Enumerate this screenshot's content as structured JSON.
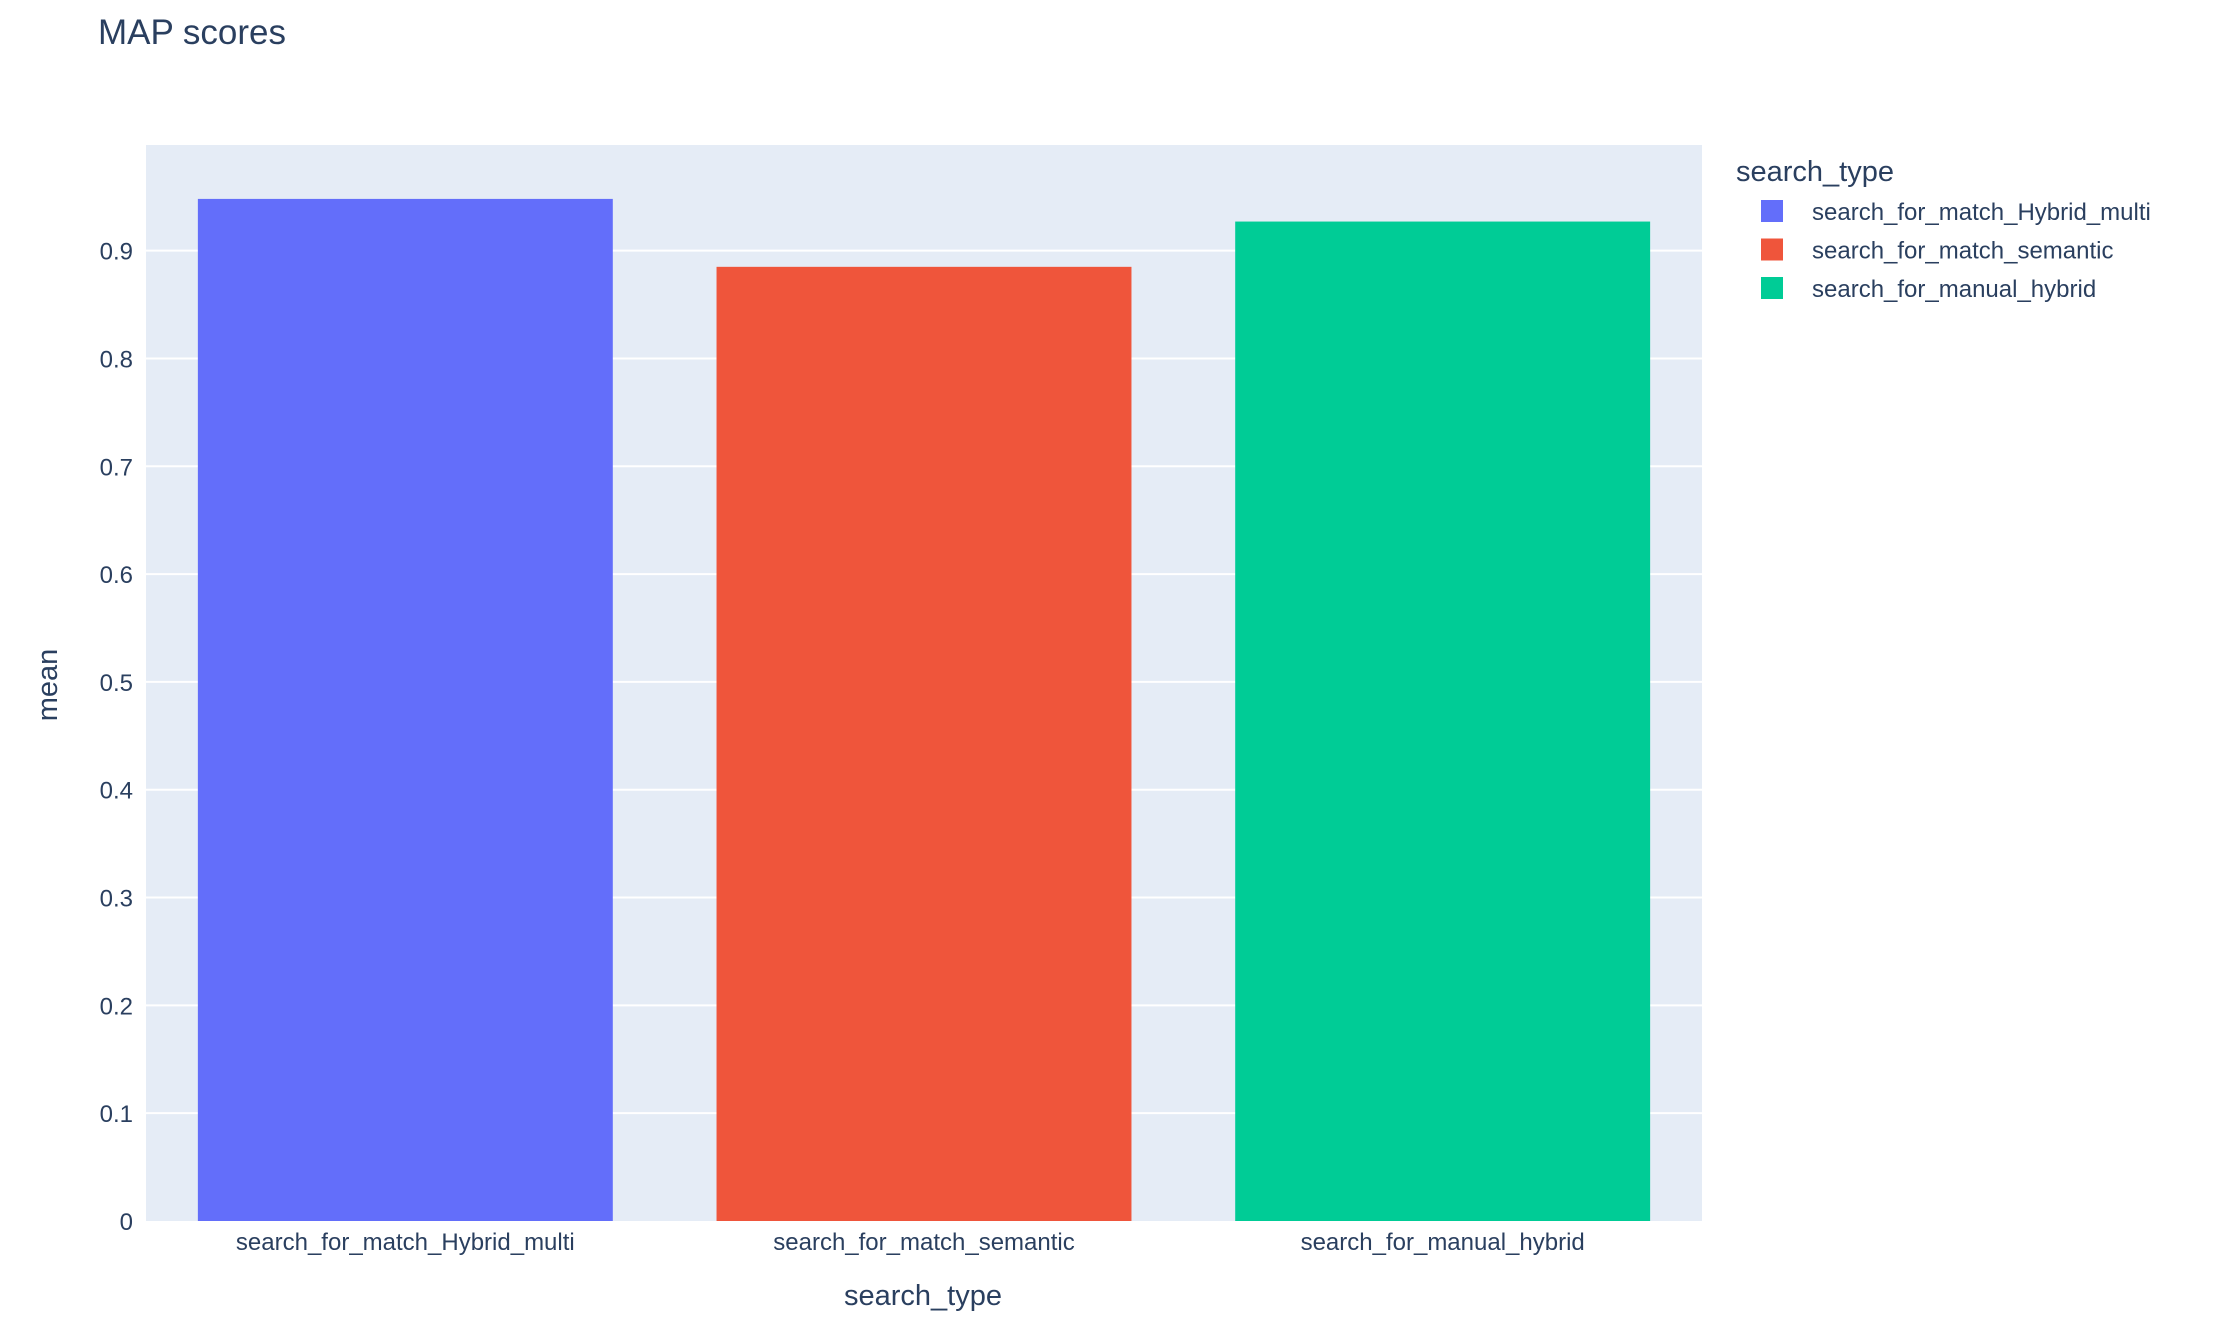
{
  "chart_data": {
    "type": "bar",
    "title": "MAP scores",
    "xlabel": "search_type",
    "ylabel": "mean",
    "categories": [
      "search_for_match_Hybrid_multi",
      "search_for_match_semantic",
      "search_for_manual_hybrid"
    ],
    "values": [
      0.948,
      0.885,
      0.927
    ],
    "colors": [
      "#636efa",
      "#ef553b",
      "#00cc96"
    ],
    "ylim": [
      0,
      0.998
    ],
    "yticks": [
      0,
      0.1,
      0.2,
      0.3,
      0.4,
      0.5,
      0.6,
      0.7,
      0.8,
      0.9
    ],
    "ytick_labels": [
      "0",
      "0.1",
      "0.2",
      "0.3",
      "0.4",
      "0.5",
      "0.6",
      "0.7",
      "0.8",
      "0.9"
    ],
    "grid": true,
    "legend": {
      "title": "search_type",
      "placement": "top-right",
      "entries": [
        "search_for_match_Hybrid_multi",
        "search_for_match_semantic",
        "search_for_manual_hybrid"
      ]
    }
  }
}
